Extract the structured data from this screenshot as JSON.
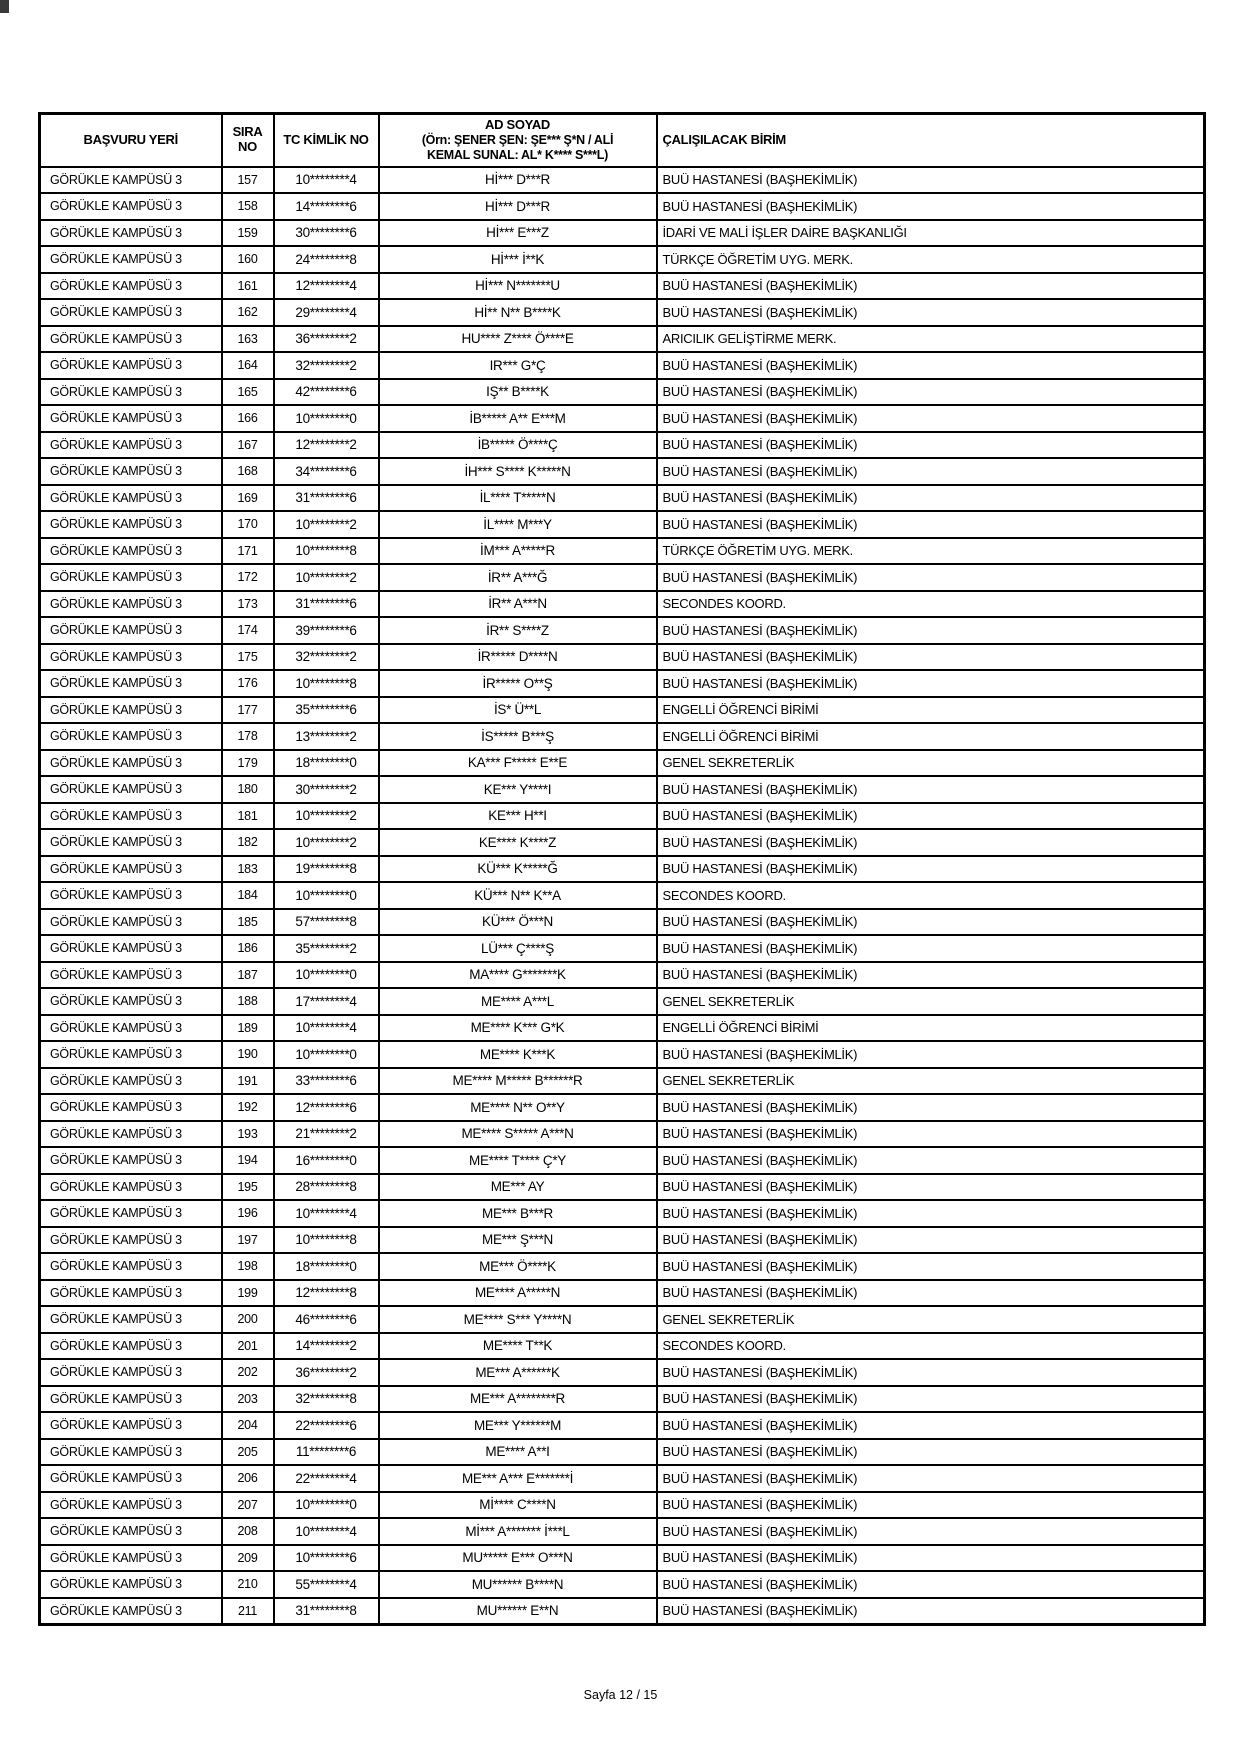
{
  "table": {
    "headers": {
      "basvuru_yeri": "BAŞVURU YERİ",
      "sira_no": "SIRA NO",
      "tc_kimlik_no": "TC KİMLİK NO",
      "ad_soyad_title": "AD SOYAD",
      "ad_soyad_example_line1": "(Örn: ŞENER ŞEN: ŞE*** Ş*N / ALİ",
      "ad_soyad_example_line2": "KEMAL SUNAL: AL* K**** S***L)",
      "calisilacak_birim": "ÇALIŞILACAK BİRİM"
    },
    "rows": [
      [
        "GÖRÜKLE KAMPÜSÜ 3",
        "157",
        "10********4",
        "Hİ*** D***R",
        "BUÜ HASTANESİ (BAŞHEKİMLİK)"
      ],
      [
        "GÖRÜKLE KAMPÜSÜ 3",
        "158",
        "14********6",
        "Hİ*** D***R",
        "BUÜ HASTANESİ (BAŞHEKİMLİK)"
      ],
      [
        "GÖRÜKLE KAMPÜSÜ 3",
        "159",
        "30********6",
        "Hİ*** E***Z",
        "İDARİ VE MALİ İŞLER DAİRE BAŞKANLIĞI"
      ],
      [
        "GÖRÜKLE KAMPÜSÜ 3",
        "160",
        "24********8",
        "Hİ*** İ**K",
        "TÜRKÇE ÖĞRETİM UYG. MERK."
      ],
      [
        "GÖRÜKLE KAMPÜSÜ 3",
        "161",
        "12********4",
        "Hİ*** N*******U",
        "BUÜ HASTANESİ (BAŞHEKİMLİK)"
      ],
      [
        "GÖRÜKLE KAMPÜSÜ 3",
        "162",
        "29********4",
        "Hİ** N** B****K",
        "BUÜ HASTANESİ (BAŞHEKİMLİK)"
      ],
      [
        "GÖRÜKLE KAMPÜSÜ 3",
        "163",
        "36********2",
        "HU**** Z**** Ö****E",
        "ARICILIK GELİŞTİRME MERK."
      ],
      [
        "GÖRÜKLE KAMPÜSÜ 3",
        "164",
        "32********2",
        "IR*** G*Ç",
        "BUÜ HASTANESİ (BAŞHEKİMLİK)"
      ],
      [
        "GÖRÜKLE KAMPÜSÜ 3",
        "165",
        "42********6",
        "IŞ** B****K",
        "BUÜ HASTANESİ (BAŞHEKİMLİK)"
      ],
      [
        "GÖRÜKLE KAMPÜSÜ 3",
        "166",
        "10********0",
        "İB***** A** E***M",
        "BUÜ HASTANESİ (BAŞHEKİMLİK)"
      ],
      [
        "GÖRÜKLE KAMPÜSÜ 3",
        "167",
        "12********2",
        "İB***** Ö****Ç",
        "BUÜ HASTANESİ (BAŞHEKİMLİK)"
      ],
      [
        "GÖRÜKLE KAMPÜSÜ 3",
        "168",
        "34********6",
        "İH*** S**** K*****N",
        "BUÜ HASTANESİ (BAŞHEKİMLİK)"
      ],
      [
        "GÖRÜKLE KAMPÜSÜ 3",
        "169",
        "31********6",
        "İL**** T*****N",
        "BUÜ HASTANESİ (BAŞHEKİMLİK)"
      ],
      [
        "GÖRÜKLE KAMPÜSÜ 3",
        "170",
        "10********2",
        "İL**** M***Y",
        "BUÜ HASTANESİ (BAŞHEKİMLİK)"
      ],
      [
        "GÖRÜKLE KAMPÜSÜ 3",
        "171",
        "10********8",
        "İM*** A*****R",
        "TÜRKÇE ÖĞRETİM UYG. MERK."
      ],
      [
        "GÖRÜKLE KAMPÜSÜ 3",
        "172",
        "10********2",
        "İR** A***Ğ",
        "BUÜ HASTANESİ (BAŞHEKİMLİK)"
      ],
      [
        "GÖRÜKLE KAMPÜSÜ 3",
        "173",
        "31********6",
        "İR** A***N",
        "SECONDES KOORD."
      ],
      [
        "GÖRÜKLE KAMPÜSÜ 3",
        "174",
        "39********6",
        "İR** S****Z",
        "BUÜ HASTANESİ (BAŞHEKİMLİK)"
      ],
      [
        "GÖRÜKLE KAMPÜSÜ 3",
        "175",
        "32********2",
        "İR***** D****N",
        "BUÜ HASTANESİ (BAŞHEKİMLİK)"
      ],
      [
        "GÖRÜKLE KAMPÜSÜ 3",
        "176",
        "10********8",
        "İR***** O**Ş",
        "BUÜ HASTANESİ (BAŞHEKİMLİK)"
      ],
      [
        "GÖRÜKLE KAMPÜSÜ 3",
        "177",
        "35********6",
        "İS* Ü**L",
        "ENGELLİ ÖĞRENCİ BİRİMİ"
      ],
      [
        "GÖRÜKLE KAMPÜSÜ 3",
        "178",
        "13********2",
        "İS***** B***Ş",
        "ENGELLİ ÖĞRENCİ BİRİMİ"
      ],
      [
        "GÖRÜKLE KAMPÜSÜ 3",
        "179",
        "18********0",
        "KA*** F***** E**E",
        "GENEL SEKRETERLİK"
      ],
      [
        "GÖRÜKLE KAMPÜSÜ 3",
        "180",
        "30********2",
        "KE*** Y****I",
        "BUÜ HASTANESİ (BAŞHEKİMLİK)"
      ],
      [
        "GÖRÜKLE KAMPÜSÜ 3",
        "181",
        "10********2",
        "KE*** H**I",
        "BUÜ HASTANESİ (BAŞHEKİMLİK)"
      ],
      [
        "GÖRÜKLE KAMPÜSÜ 3",
        "182",
        "10********2",
        "KE**** K****Z",
        "BUÜ HASTANESİ (BAŞHEKİMLİK)"
      ],
      [
        "GÖRÜKLE KAMPÜSÜ 3",
        "183",
        "19********8",
        "KÜ*** K*****Ğ",
        "BUÜ HASTANESİ (BAŞHEKİMLİK)"
      ],
      [
        "GÖRÜKLE KAMPÜSÜ 3",
        "184",
        "10********0",
        "KÜ*** N** K**A",
        "SECONDES KOORD."
      ],
      [
        "GÖRÜKLE KAMPÜSÜ 3",
        "185",
        "57********8",
        "KÜ*** Ö***N",
        "BUÜ HASTANESİ (BAŞHEKİMLİK)"
      ],
      [
        "GÖRÜKLE KAMPÜSÜ 3",
        "186",
        "35********2",
        "LÜ*** Ç****Ş",
        "BUÜ HASTANESİ (BAŞHEKİMLİK)"
      ],
      [
        "GÖRÜKLE KAMPÜSÜ 3",
        "187",
        "10********0",
        "MA**** G*******K",
        "BUÜ HASTANESİ (BAŞHEKİMLİK)"
      ],
      [
        "GÖRÜKLE KAMPÜSÜ 3",
        "188",
        "17********4",
        "ME**** A***L",
        "GENEL SEKRETERLİK"
      ],
      [
        "GÖRÜKLE KAMPÜSÜ 3",
        "189",
        "10********4",
        "ME**** K*** G*K",
        "ENGELLİ ÖĞRENCİ BİRİMİ"
      ],
      [
        "GÖRÜKLE KAMPÜSÜ 3",
        "190",
        "10********0",
        "ME**** K***K",
        "BUÜ HASTANESİ (BAŞHEKİMLİK)"
      ],
      [
        "GÖRÜKLE KAMPÜSÜ 3",
        "191",
        "33********6",
        "ME**** M***** B******R",
        "GENEL SEKRETERLİK"
      ],
      [
        "GÖRÜKLE KAMPÜSÜ 3",
        "192",
        "12********6",
        "ME**** N** O**Y",
        "BUÜ HASTANESİ (BAŞHEKİMLİK)"
      ],
      [
        "GÖRÜKLE KAMPÜSÜ 3",
        "193",
        "21********2",
        "ME**** S***** A***N",
        "BUÜ HASTANESİ (BAŞHEKİMLİK)"
      ],
      [
        "GÖRÜKLE KAMPÜSÜ 3",
        "194",
        "16********0",
        "ME**** T**** Ç*Y",
        "BUÜ HASTANESİ (BAŞHEKİMLİK)"
      ],
      [
        "GÖRÜKLE KAMPÜSÜ 3",
        "195",
        "28********8",
        "ME*** AY",
        "BUÜ HASTANESİ (BAŞHEKİMLİK)"
      ],
      [
        "GÖRÜKLE KAMPÜSÜ 3",
        "196",
        "10********4",
        "ME*** B***R",
        "BUÜ HASTANESİ (BAŞHEKİMLİK)"
      ],
      [
        "GÖRÜKLE KAMPÜSÜ 3",
        "197",
        "10********8",
        "ME*** Ş***N",
        "BUÜ HASTANESİ (BAŞHEKİMLİK)"
      ],
      [
        "GÖRÜKLE KAMPÜSÜ 3",
        "198",
        "18********0",
        "ME*** Ö****K",
        "BUÜ HASTANESİ (BAŞHEKİMLİK)"
      ],
      [
        "GÖRÜKLE KAMPÜSÜ 3",
        "199",
        "12********8",
        "ME**** A*****N",
        "BUÜ HASTANESİ (BAŞHEKİMLİK)"
      ],
      [
        "GÖRÜKLE KAMPÜSÜ 3",
        "200",
        "46********6",
        "ME**** S*** Y****N",
        "GENEL SEKRETERLİK"
      ],
      [
        "GÖRÜKLE KAMPÜSÜ 3",
        "201",
        "14********2",
        "ME**** T**K",
        "SECONDES KOORD."
      ],
      [
        "GÖRÜKLE KAMPÜSÜ 3",
        "202",
        "36********2",
        "ME*** A******K",
        "BUÜ HASTANESİ (BAŞHEKİMLİK)"
      ],
      [
        "GÖRÜKLE KAMPÜSÜ 3",
        "203",
        "32********8",
        "ME*** A********R",
        "BUÜ HASTANESİ (BAŞHEKİMLİK)"
      ],
      [
        "GÖRÜKLE KAMPÜSÜ 3",
        "204",
        "22********6",
        "ME*** Y******M",
        "BUÜ HASTANESİ (BAŞHEKİMLİK)"
      ],
      [
        "GÖRÜKLE KAMPÜSÜ 3",
        "205",
        "11********6",
        "ME**** A**I",
        "BUÜ HASTANESİ (BAŞHEKİMLİK)"
      ],
      [
        "GÖRÜKLE KAMPÜSÜ 3",
        "206",
        "22********4",
        "ME*** A*** E*******İ",
        "BUÜ HASTANESİ (BAŞHEKİMLİK)"
      ],
      [
        "GÖRÜKLE KAMPÜSÜ 3",
        "207",
        "10********0",
        "Mİ**** C****N",
        "BUÜ HASTANESİ (BAŞHEKİMLİK)"
      ],
      [
        "GÖRÜKLE KAMPÜSÜ 3",
        "208",
        "10********4",
        "Mİ*** A******* İ***L",
        "BUÜ HASTANESİ (BAŞHEKİMLİK)"
      ],
      [
        "GÖRÜKLE KAMPÜSÜ 3",
        "209",
        "10********6",
        "MU***** E*** O***N",
        "BUÜ HASTANESİ (BAŞHEKİMLİK)"
      ],
      [
        "GÖRÜKLE KAMPÜSÜ 3",
        "210",
        "55********4",
        "MU****** B****N",
        "BUÜ HASTANESİ (BAŞHEKİMLİK)"
      ],
      [
        "GÖRÜKLE KAMPÜSÜ 3",
        "211",
        "31********8",
        "MU****** E**N",
        "BUÜ HASTANESİ (BAŞHEKİMLİK)"
      ]
    ]
  },
  "footer": {
    "page_label": "Sayfa 12 / 15"
  }
}
